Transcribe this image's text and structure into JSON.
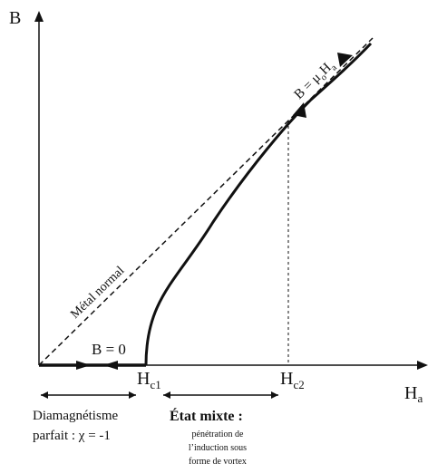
{
  "axes": {
    "y_main": "B",
    "x_main": "H",
    "x_sub": "a"
  },
  "curves": {
    "normal_metal_label": "Métal normal",
    "normal_metal_eq_main": "B = μ",
    "normal_metal_eq_sub": "o",
    "normal_metal_eq_tail": "H",
    "normal_metal_eq_tail_sub": "a",
    "meissner_label": "B = 0"
  },
  "fields": {
    "hc1_main": "H",
    "hc1_sub": "c1",
    "hc2_main": "H",
    "hc2_sub": "c2"
  },
  "regions": {
    "meissner_line1": "Diamagnétisme",
    "meissner_line2": "parfait : χ = -1",
    "mixed_title": "État mixte :",
    "mixed_line1": "pénétration de",
    "mixed_line2": "l’induction sous",
    "mixed_line3": "forme de vortex"
  },
  "colors": {
    "ink": "#111111",
    "background": "#ffffff"
  }
}
